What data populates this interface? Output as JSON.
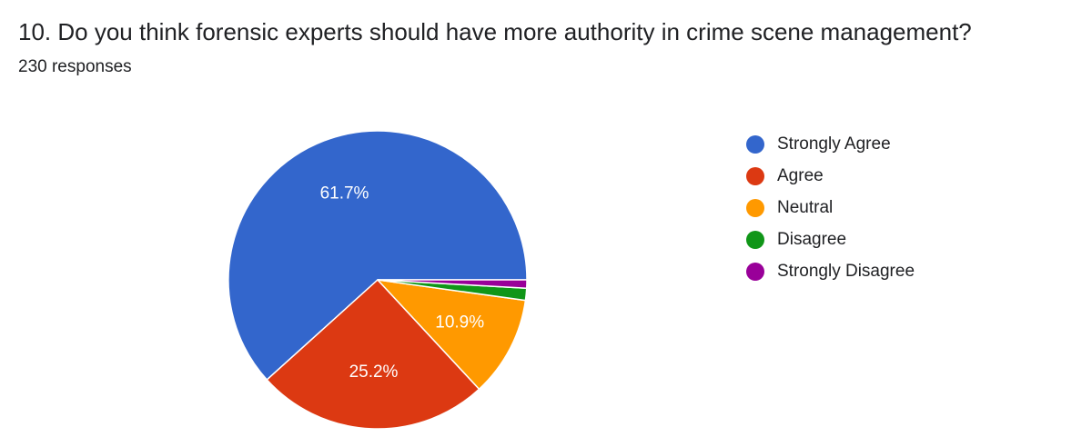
{
  "form": {
    "question_title": "10. Do you think forensic experts should have more authority in crime scene management?",
    "response_count": "230 responses"
  },
  "chart_data": {
    "type": "pie",
    "title": "10. Do you think forensic experts should have more authority in crime scene management?",
    "categories": [
      "Strongly Agree",
      "Agree",
      "Neutral",
      "Disagree",
      "Strongly Disagree"
    ],
    "values": [
      61.7,
      25.2,
      10.9,
      1.3,
      0.9
    ],
    "value_labels": [
      "61.7%",
      "25.2%",
      "10.9%",
      "",
      ""
    ],
    "colors": [
      "#3366cc",
      "#dc3912",
      "#ff9900",
      "#109618",
      "#990099"
    ],
    "legend_position": "right",
    "start_angle": "3 o'clock",
    "direction": "counterclockwise"
  }
}
